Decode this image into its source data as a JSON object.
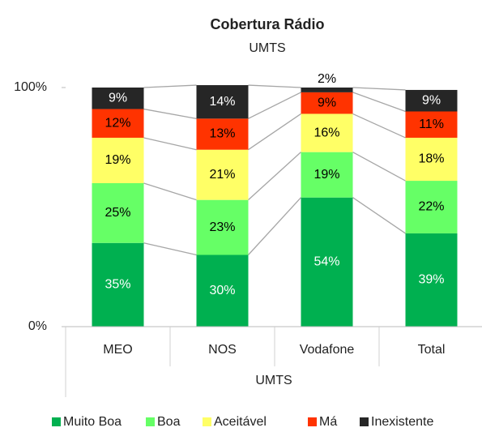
{
  "chart_data": {
    "type": "stacked_bar_percent",
    "title": "Cobertura Rádio",
    "subtitle": "UMTS",
    "x_label": "UMTS",
    "categories": [
      "MEO",
      "NOS",
      "Vodafone",
      "Total"
    ],
    "series": [
      {
        "name": "Muito Boa",
        "color": "#00b050",
        "values": [
          35,
          30,
          54,
          39
        ],
        "value_labels": [
          "35%",
          "30%",
          "54%",
          "39%"
        ]
      },
      {
        "name": "Boa",
        "color": "#66ff66",
        "values": [
          25,
          23,
          19,
          22
        ],
        "value_labels": [
          "25%",
          "23%",
          "19%",
          "22%"
        ]
      },
      {
        "name": "Aceitável",
        "color": "#ffff66",
        "values": [
          19,
          21,
          16,
          18
        ],
        "value_labels": [
          "19%",
          "21%",
          "16%",
          "18%"
        ]
      },
      {
        "name": "Má",
        "color": "#ff3300",
        "values": [
          12,
          13,
          9,
          11
        ],
        "value_labels": [
          "12%",
          "13%",
          "9%",
          "11%"
        ]
      },
      {
        "name": "Inexistente",
        "color": "#262626",
        "values": [
          9,
          14,
          2,
          9
        ],
        "value_labels": [
          "9%",
          "14%",
          "2%",
          "9%"
        ]
      }
    ],
    "ylim": [
      0,
      100
    ],
    "yticks": [
      {
        "value": 0,
        "label": "0%"
      },
      {
        "value": 100,
        "label": "100%"
      }
    ],
    "legend": "bottom"
  }
}
